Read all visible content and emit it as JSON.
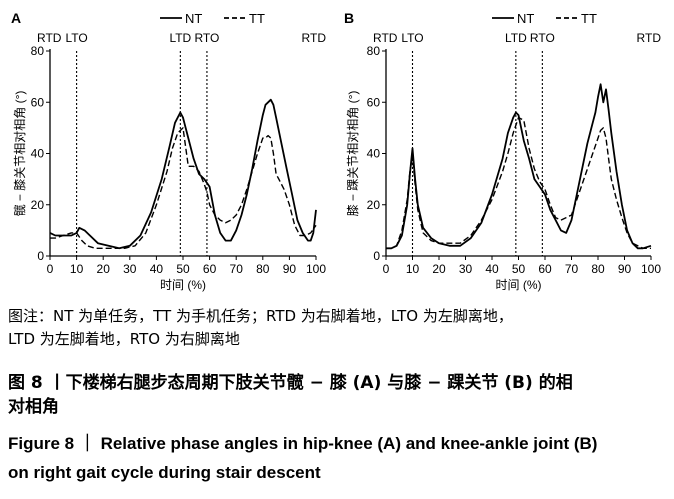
{
  "figure": {
    "caption_note_line1": "图注：NT 为单任务，TT 为手机任务；RTD 为右脚着地，LTO 为左脚离地，",
    "caption_note_line2": "LTD 为左脚着地，RTO 为右脚离地",
    "caption_cn_line1": "图 8 丨下楼梯右腿步态周期下肢关节髋 − 膝 (A) 与膝 − 踝关节 (B) 的相",
    "caption_cn_line2": "对相角",
    "caption_en_line1": "Figure 8 ｜ Relative phase angles in hip-knee (A) and knee-ankle joint (B)",
    "caption_en_line2": "on right gait cycle during stair descent"
  },
  "colors": {
    "line": "#000000",
    "background": "#ffffff"
  },
  "chart_data": [
    {
      "type": "line",
      "panel": "A",
      "ylabel": "髋 − 膝关节相对相角 (°)",
      "xlabel": "时间 (%)",
      "xlim": [
        0,
        100
      ],
      "ylim": [
        0,
        80
      ],
      "xticks": [
        0,
        10,
        20,
        30,
        40,
        50,
        60,
        70,
        80,
        90,
        100
      ],
      "yticks": [
        0,
        20,
        40,
        60,
        80
      ],
      "legend": {
        "placement": "top-center",
        "entries": [
          "NT",
          "TT"
        ]
      },
      "events": [
        {
          "label": "RTD",
          "x": 0,
          "line": false
        },
        {
          "label": "LTO",
          "x": 10,
          "line": true
        },
        {
          "label": "LTD",
          "x": 49,
          "line": true
        },
        {
          "label": "RTO",
          "x": 59,
          "line": true
        },
        {
          "label": "RTD",
          "x": 100,
          "line": false
        }
      ],
      "series": [
        {
          "name": "NT",
          "style": "solid",
          "x": [
            0,
            2,
            5,
            8,
            10,
            11,
            13,
            15,
            18,
            22,
            26,
            30,
            34,
            38,
            42,
            45,
            47,
            49,
            50,
            52,
            54,
            56,
            58,
            60,
            62,
            64,
            66,
            68,
            70,
            72,
            74,
            76,
            78,
            80,
            81,
            82,
            83,
            84,
            85,
            87,
            89,
            91,
            93,
            95,
            97,
            98,
            99,
            100
          ],
          "y": [
            9,
            8,
            8,
            8,
            9,
            11,
            10,
            8,
            5,
            4,
            3,
            4,
            8,
            17,
            30,
            43,
            52,
            56,
            54,
            46,
            38,
            32,
            30,
            27,
            16,
            9,
            6,
            6,
            10,
            16,
            24,
            34,
            45,
            55,
            59,
            60,
            61,
            59,
            54,
            44,
            34,
            24,
            14,
            9,
            6,
            6,
            9,
            18
          ]
        },
        {
          "name": "TT",
          "style": "dashed",
          "x": [
            0,
            2,
            5,
            8,
            10,
            12,
            14,
            17,
            20,
            24,
            28,
            32,
            36,
            40,
            44,
            46,
            48,
            50,
            52,
            54,
            56,
            58,
            59,
            60,
            62,
            64,
            66,
            68,
            70,
            72,
            74,
            76,
            78,
            80,
            81,
            82,
            83,
            84,
            85,
            86,
            88,
            90,
            92,
            94,
            96,
            98,
            100
          ],
          "y": [
            7,
            7,
            8,
            9,
            9,
            6,
            4,
            3,
            3,
            3,
            3,
            4,
            9,
            20,
            33,
            42,
            48,
            50,
            35,
            35,
            33,
            28,
            25,
            20,
            16,
            14,
            13,
            14,
            16,
            20,
            26,
            33,
            40,
            46,
            46,
            47,
            46,
            40,
            32,
            30,
            26,
            20,
            12,
            8,
            8,
            9,
            12
          ]
        }
      ]
    },
    {
      "type": "line",
      "panel": "B",
      "ylabel": "膝 − 踝关节相对相角 (°)",
      "xlabel": "时间 (%)",
      "xlim": [
        0,
        100
      ],
      "ylim": [
        0,
        80
      ],
      "xticks": [
        0,
        10,
        20,
        30,
        40,
        50,
        60,
        70,
        80,
        90,
        100
      ],
      "yticks": [
        0,
        20,
        40,
        60,
        80
      ],
      "legend": {
        "placement": "top-center",
        "entries": [
          "NT",
          "TT"
        ]
      },
      "events": [
        {
          "label": "RTD",
          "x": 0,
          "line": false
        },
        {
          "label": "LTO",
          "x": 10,
          "line": true
        },
        {
          "label": "LTD",
          "x": 49,
          "line": true
        },
        {
          "label": "RTO",
          "x": 59,
          "line": true
        },
        {
          "label": "RTD",
          "x": 100,
          "line": false
        }
      ],
      "series": [
        {
          "name": "NT",
          "style": "solid",
          "x": [
            0,
            2,
            4,
            6,
            8,
            9,
            10,
            11,
            12,
            14,
            17,
            20,
            24,
            28,
            32,
            36,
            40,
            44,
            46,
            48,
            49,
            50,
            52,
            54,
            56,
            58,
            60,
            62,
            64,
            66,
            68,
            70,
            72,
            74,
            76,
            78,
            79,
            80,
            81,
            82,
            83,
            84,
            85,
            87,
            89,
            91,
            93,
            95,
            97,
            100
          ],
          "y": [
            3,
            3,
            4,
            8,
            20,
            32,
            42,
            30,
            20,
            11,
            7,
            5,
            4,
            4,
            7,
            13,
            24,
            38,
            48,
            54,
            56,
            55,
            45,
            38,
            30,
            27,
            24,
            18,
            14,
            10,
            9,
            14,
            24,
            34,
            44,
            52,
            56,
            62,
            67,
            60,
            65,
            57,
            48,
            33,
            20,
            10,
            5,
            3,
            3,
            4
          ]
        },
        {
          "name": "TT",
          "style": "dashed",
          "x": [
            0,
            2,
            4,
            6,
            8,
            9,
            10,
            11,
            12,
            14,
            17,
            20,
            24,
            28,
            32,
            36,
            40,
            44,
            46,
            48,
            50,
            52,
            54,
            56,
            58,
            60,
            62,
            64,
            66,
            68,
            70,
            72,
            74,
            76,
            78,
            80,
            81,
            82,
            83,
            84,
            85,
            87,
            89,
            91,
            93,
            95,
            97,
            100
          ],
          "y": [
            3,
            3,
            4,
            10,
            22,
            33,
            39,
            28,
            18,
            9,
            6,
            5,
            5,
            5,
            8,
            14,
            22,
            33,
            40,
            48,
            54,
            53,
            42,
            34,
            29,
            26,
            20,
            15,
            14,
            15,
            16,
            22,
            28,
            34,
            40,
            46,
            49,
            50,
            46,
            38,
            30,
            22,
            15,
            9,
            5,
            4,
            3,
            3
          ]
        }
      ]
    }
  ]
}
